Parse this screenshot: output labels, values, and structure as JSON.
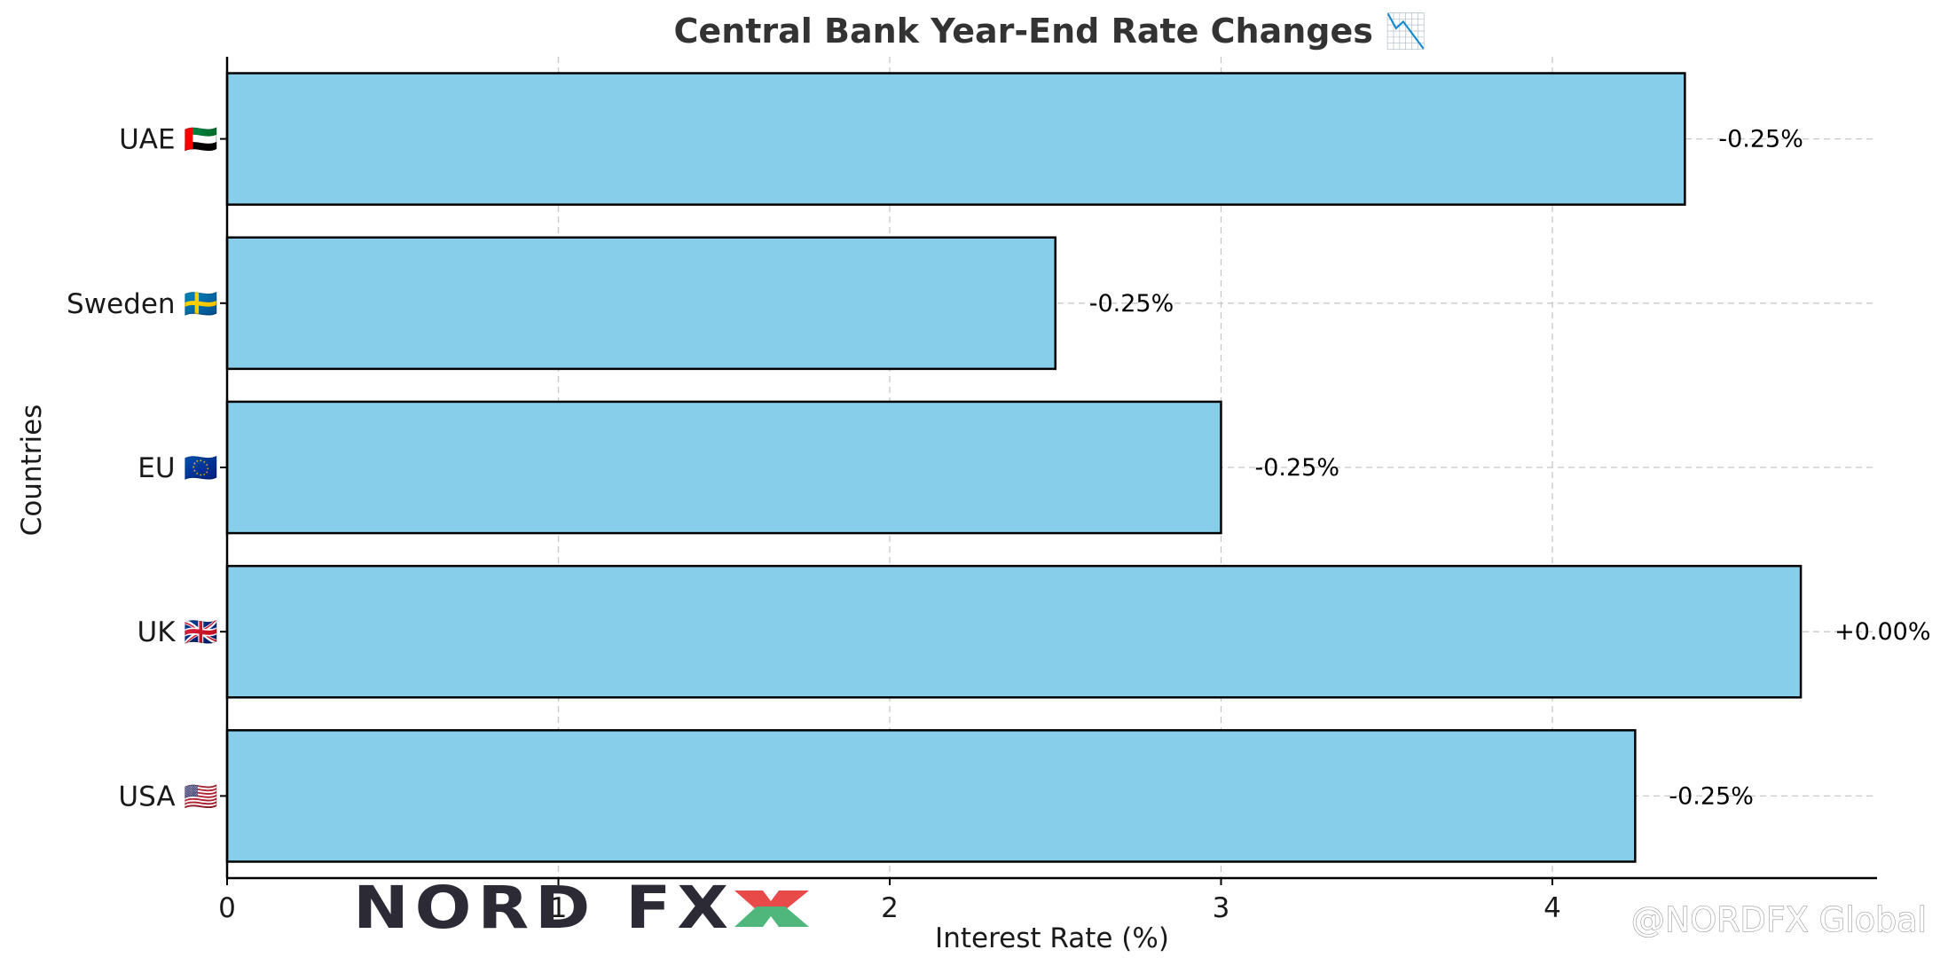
{
  "chart_data": {
    "type": "bar",
    "orientation": "horizontal",
    "title": "Central Bank Year-End Rate Changes 📉",
    "xlabel": "Interest Rate (%)",
    "ylabel": "Countries",
    "categories": [
      "USA 🇺🇸",
      "UK 🇬🇧",
      "EU 🇪🇺",
      "Sweden 🇸🇪",
      "UAE 🇦🇪"
    ],
    "values": [
      4.25,
      4.75,
      3.0,
      2.5,
      4.4
    ],
    "data_labels": [
      "-0.25%",
      "+0.00%",
      "-0.25%",
      "-0.25%",
      "-0.25%"
    ],
    "xlim": [
      0,
      4.98
    ],
    "xticks": [
      0,
      1,
      2,
      3,
      4
    ],
    "xtick_labels": [
      "0",
      "1",
      "2",
      "3",
      "4"
    ],
    "grid": true,
    "colors": {
      "bar_fill": "#87CEEB",
      "bar_edge": "#000000",
      "grid": "#c8c8c8"
    }
  },
  "branding": {
    "logo_text": "NORD FX",
    "logo_colors": {
      "text": "#2b2a35",
      "x_top": "#e84a4a",
      "x_bottom": "#4fb77c"
    },
    "watermark": "@NORDFX Global"
  }
}
